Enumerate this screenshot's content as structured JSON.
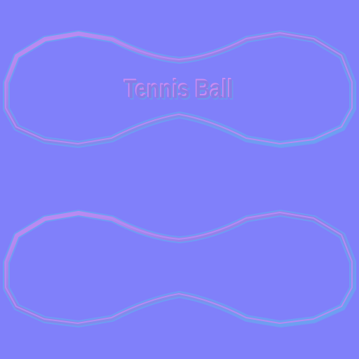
{
  "texture": {
    "label": "Tennis Ball",
    "background_color": "#8080fa",
    "seam_colors": {
      "highlight": "#c98cf2",
      "midtone": "#8f7fe8",
      "shadow": "#67a6f2"
    }
  }
}
